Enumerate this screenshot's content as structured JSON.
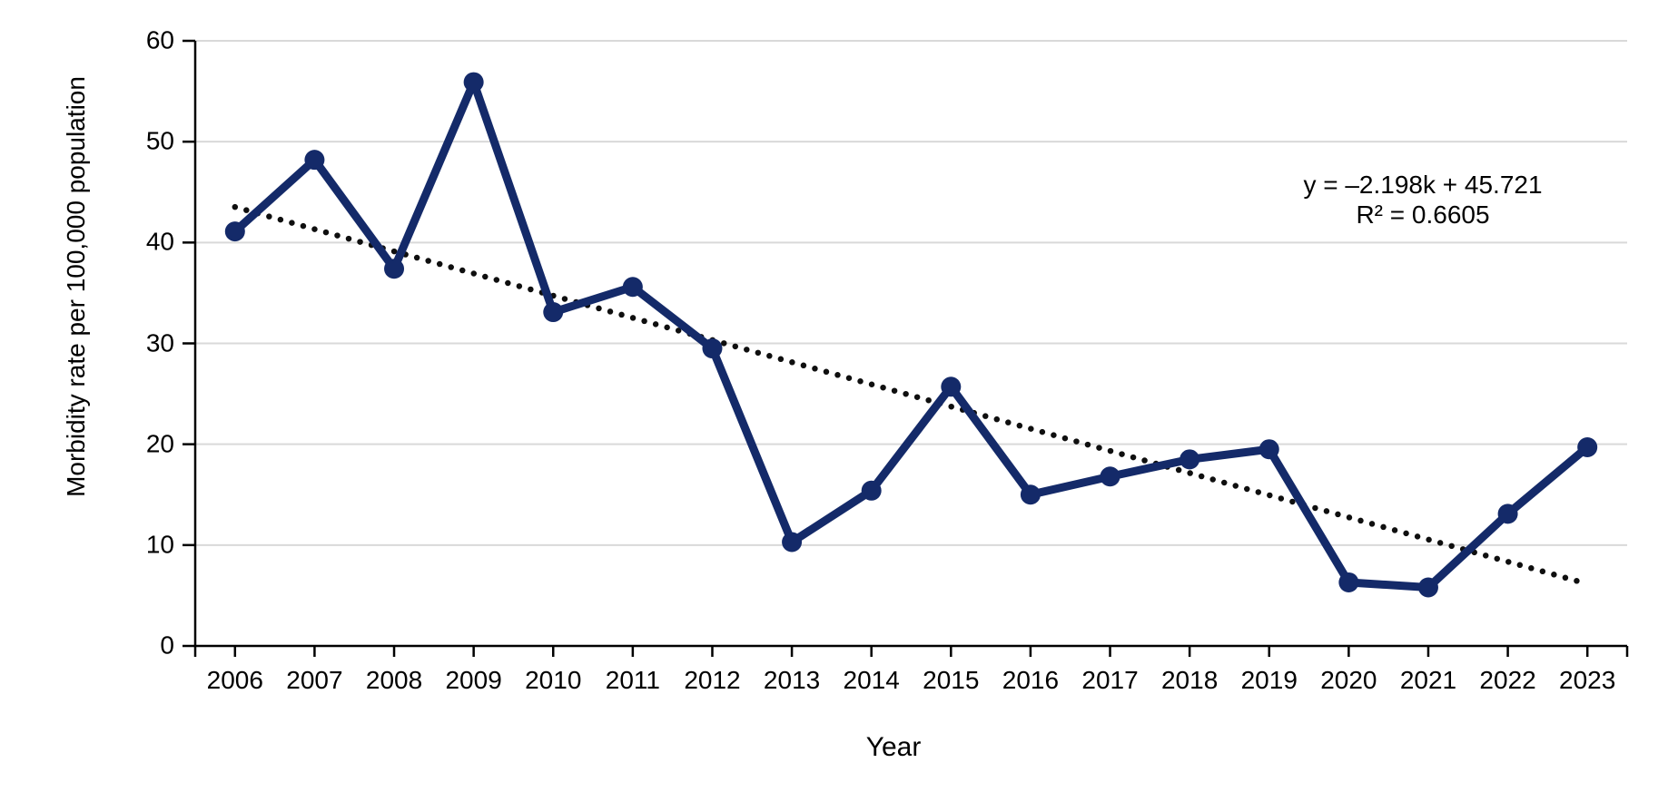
{
  "page": {
    "background": "#ffffff"
  },
  "chart_data": {
    "type": "line",
    "title": "",
    "xlabel": "Year",
    "ylabel": "Morbidity rate per 100,000 population",
    "categories": [
      "2006",
      "2007",
      "2008",
      "2009",
      "2010",
      "2011",
      "2012",
      "2013",
      "2014",
      "2015",
      "2016",
      "2017",
      "2018",
      "2019",
      "2020",
      "2021",
      "2022",
      "2023"
    ],
    "series": [
      {
        "name": "Morbidity rate per 100,000 population",
        "values": [
          41.1,
          48.2,
          37.4,
          55.9,
          33.1,
          35.6,
          29.5,
          10.3,
          15.4,
          25.7,
          15.0,
          16.8,
          18.5,
          19.5,
          6.3,
          5.8,
          13.1,
          19.7
        ],
        "color": "#142a69",
        "marker": "circle"
      }
    ],
    "trendline": {
      "type": "linear",
      "slope": -2.198,
      "intercept": 45.721,
      "k_start": 1,
      "k_end": 18,
      "equation_label": "y = –2.198k + 45.721",
      "r2_label": "R² = 0.6605",
      "color": "#0f0f0f",
      "style": "dotted"
    },
    "ylim": [
      0,
      60
    ],
    "ytick_step": 10,
    "ytick_labels": [
      "0",
      "10",
      "20",
      "30",
      "40",
      "50",
      "60"
    ],
    "grid": true,
    "legend": "none",
    "colors": {
      "gridline": "#d9d9d9",
      "axis": "#000000",
      "text": "#000000"
    }
  },
  "annotation": {
    "equation": "y = –2.198k + 45.721",
    "r_squared": "R² = 0.6605"
  },
  "axes": {
    "x_title": "Year",
    "y_title": "Morbidity rate per 100,000 population"
  }
}
